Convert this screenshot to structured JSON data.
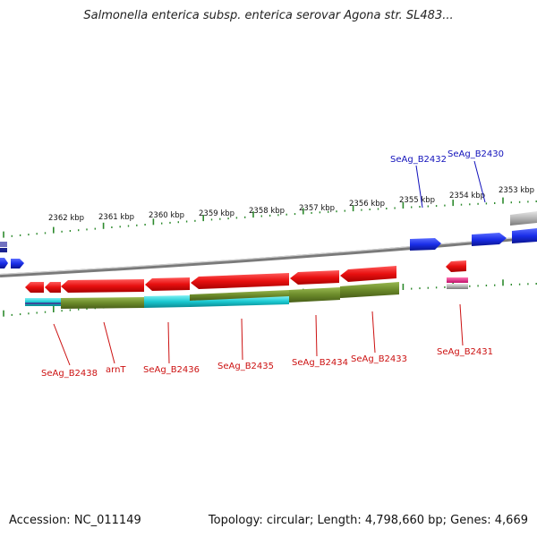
{
  "title": "Salmonella enterica subsp. enterica serovar Agona str. SL483...",
  "footer": {
    "accession": "Accession: NC_011149",
    "summary": "Topology: circular; Length: 4,798,660 bp; Genes: 4,669"
  },
  "kbp_labels": [
    "2362 kbp",
    "2361 kbp",
    "2360 kbp",
    "2359 kbp",
    "2358 kbp",
    "2357 kbp",
    "2356 kbp",
    "2355 kbp",
    "2354 kbp",
    "2353 kbp"
  ],
  "genes_reverse": [
    "SeAg_B2438",
    "arnT",
    "SeAg_B2436",
    "SeAg_B2435",
    "SeAg_B2434",
    "SeAg_B2433",
    "SeAg_B2431"
  ],
  "genes_forward": [
    "SeAg_B2432",
    "SeAg_B2430"
  ],
  "colors": {
    "forward": "#1a2ee8",
    "reverse": "#e81010",
    "cog_green": "#6b8a2a",
    "cog_cyan": "#19c8d0",
    "pink": "#e0207a",
    "backbone": "#8a8a8a",
    "ticks": "#2d8a2d"
  }
}
